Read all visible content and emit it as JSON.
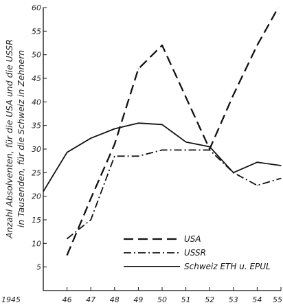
{
  "chart_data": {
    "type": "line",
    "title": "",
    "xlabel": "",
    "ylabel_lines": [
      "Anzahl Absolventen, für die USA und die USSR",
      "in Tausenden, für die Schweiz in Zehnern"
    ],
    "x_tick_labels": [
      "1945",
      "46",
      "47",
      "48",
      "49",
      "50",
      "51",
      "52",
      "53",
      "54",
      "55"
    ],
    "x": [
      1945,
      1946,
      1947,
      1948,
      1949,
      1950,
      1951,
      1952,
      1953,
      1954,
      1955
    ],
    "xlim": [
      1945,
      1955
    ],
    "ylim": [
      0,
      60
    ],
    "y_ticks": [
      5,
      10,
      15,
      20,
      25,
      30,
      35,
      40,
      45,
      50,
      55,
      60
    ],
    "grid": false,
    "legend_position": "bottom-right",
    "series": [
      {
        "name": "USA",
        "dash": "long-dash",
        "points": [
          [
            1946,
            7.5
          ],
          [
            1947,
            19.5
          ],
          [
            1948,
            31
          ],
          [
            1949,
            47
          ],
          [
            1950,
            52
          ],
          [
            1951,
            41
          ],
          [
            1952,
            30
          ],
          [
            1953,
            41.5
          ],
          [
            1954,
            52
          ],
          [
            1955,
            61
          ]
        ]
      },
      {
        "name": "USSR",
        "dash": "dash-dot",
        "points": [
          [
            1946,
            11
          ],
          [
            1947,
            15
          ],
          [
            1948,
            28.5
          ],
          [
            1949,
            28.5
          ],
          [
            1950,
            29.8
          ],
          [
            1951,
            29.8
          ],
          [
            1952,
            29.8
          ],
          [
            1953,
            25
          ],
          [
            1954,
            22.3
          ],
          [
            1955,
            23.8
          ]
        ]
      },
      {
        "name": "Schweiz ETH u. EPUL",
        "dash": "solid",
        "points": [
          [
            1945,
            21
          ],
          [
            1946,
            29.3
          ],
          [
            1947,
            32.3
          ],
          [
            1948,
            34.3
          ],
          [
            1949,
            35.5
          ],
          [
            1950,
            35.2
          ],
          [
            1951,
            31.5
          ],
          [
            1952,
            30.5
          ],
          [
            1953,
            25
          ],
          [
            1954,
            27.2
          ],
          [
            1955,
            26.5
          ]
        ]
      }
    ]
  }
}
